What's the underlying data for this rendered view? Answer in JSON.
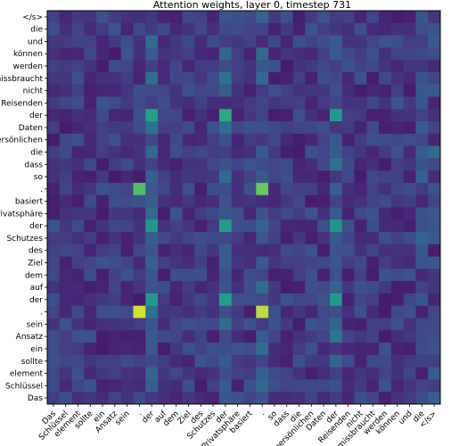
{
  "chart_data": {
    "type": "heatmap",
    "title": "Attention weights, layer 0, timestep 731",
    "x_labels": [
      "Das",
      "Schlüssel",
      "element",
      "sollte",
      "ein",
      "Ansatz",
      "sein",
      ".",
      "der",
      "auf",
      "dem",
      "Ziel",
      "des",
      "Schutzes",
      "der",
      "Privatsphäre",
      "basiert",
      ".",
      "so",
      "dass",
      "die",
      "persönlichen",
      "Daten",
      "der",
      "Reisenden",
      "nicht",
      "missbraucht",
      "werden",
      "können",
      "und",
      "die",
      "</s>"
    ],
    "y_labels": [
      "</s>",
      "die",
      "und",
      "können",
      "werden",
      "missbraucht",
      "nicht",
      "Reisenden",
      "der",
      "Daten",
      "persönlichen",
      "die",
      "dass",
      "so",
      ".",
      "basiert",
      "Privatsphäre",
      "der",
      "Schutzes",
      "des",
      "Ziel",
      "dem",
      "auf",
      "der",
      ".",
      "sein",
      "Ansatz",
      "ein",
      "sollte",
      "element",
      "Schlüssel",
      "Das"
    ],
    "value_range": [
      0,
      1
    ],
    "colormap": "viridis",
    "highlights": [
      {
        "row": "der",
        "row_index": 8,
        "col_index": 8,
        "value": 0.72
      },
      {
        "row": "der",
        "row_index": 8,
        "col_index": 14,
        "value": 0.76
      },
      {
        "row": "der",
        "row_index": 8,
        "col_index": 23,
        "value": 0.68
      },
      {
        "row": ".",
        "row_index": 14,
        "col_index": 7,
        "value": 0.82
      },
      {
        "row": ".",
        "row_index": 14,
        "col_index": 17,
        "value": 0.85
      },
      {
        "row": "der",
        "row_index": 17,
        "col_index": 8,
        "value": 0.68
      },
      {
        "row": "der",
        "row_index": 17,
        "col_index": 14,
        "value": 0.7
      },
      {
        "row": "der",
        "row_index": 17,
        "col_index": 23,
        "value": 0.66
      },
      {
        "row": "der",
        "row_index": 23,
        "col_index": 8,
        "value": 0.68
      },
      {
        "row": "der",
        "row_index": 23,
        "col_index": 14,
        "value": 0.7
      },
      {
        "row": "der",
        "row_index": 23,
        "col_index": 23,
        "value": 0.68
      },
      {
        "row": ".",
        "row_index": 24,
        "col_index": 7,
        "value": 0.96
      },
      {
        "row": ".",
        "row_index": 24,
        "col_index": 17,
        "value": 0.94
      }
    ]
  }
}
